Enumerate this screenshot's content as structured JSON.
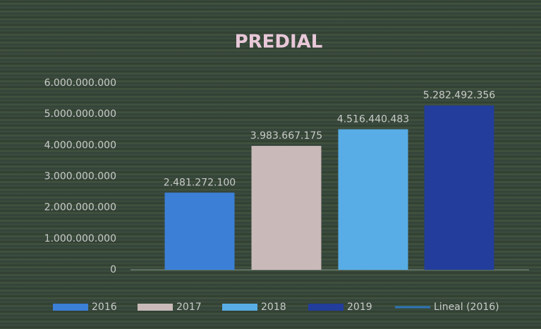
{
  "chart_data": {
    "type": "bar",
    "title": "PREDIAL",
    "series": [
      {
        "name": "2016",
        "color": "#3b7fd6",
        "values": [
          2481272100
        ],
        "value_labels": [
          "2.481.272.100"
        ]
      },
      {
        "name": "2017",
        "color": "#c9b9b9",
        "values": [
          3983667175
        ],
        "value_labels": [
          "3.983.667.175"
        ]
      },
      {
        "name": "2018",
        "color": "#58ade6",
        "values": [
          4516440483
        ],
        "value_labels": [
          "4.516.440.483"
        ]
      },
      {
        "name": "2019",
        "color": "#223d9c",
        "values": [
          5282492356
        ],
        "value_labels": [
          "5.282.492.356"
        ]
      }
    ],
    "trendline": {
      "name": "Lineal (2016)",
      "color": "#2e75b6"
    },
    "ylim": [
      0,
      6000000000
    ],
    "yticks": [
      0,
      {
        "value": 1000000000,
        "label": "1.000.000.000"
      },
      {
        "value": 2000000000,
        "label": "2.000.000.000"
      },
      {
        "value": 3000000000,
        "label": "3.000.000.000"
      },
      {
        "value": 4000000000,
        "label": "4.000.000.000"
      },
      {
        "value": 5000000000,
        "label": "5.000.000.000"
      },
      {
        "value": 6000000000,
        "label": "6.000.000.000"
      }
    ],
    "grid": false,
    "legend": "bottom"
  }
}
